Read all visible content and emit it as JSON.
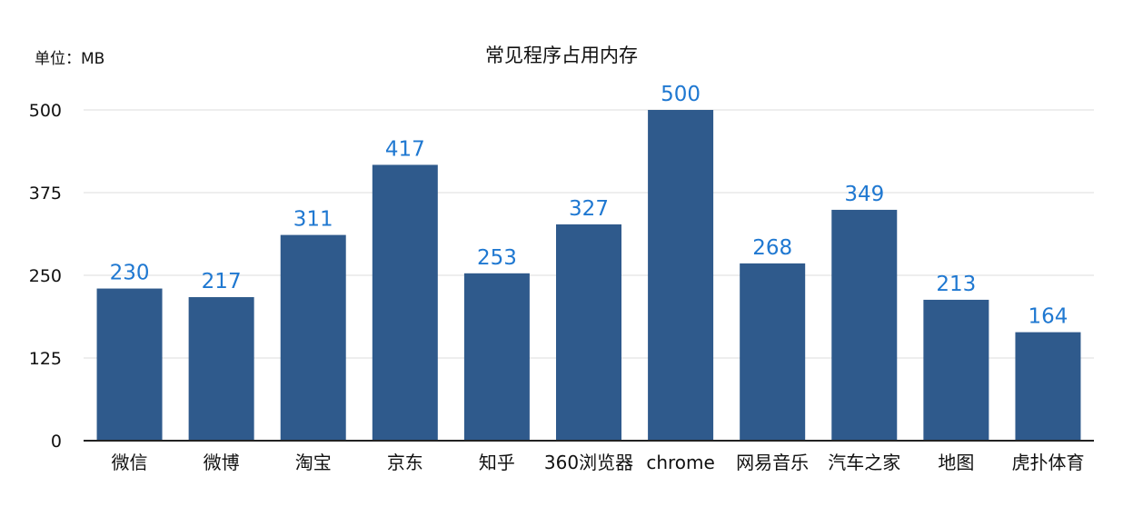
{
  "unit_label": "单位：MB",
  "chart_data": {
    "type": "bar",
    "title": "常见程序占用内存",
    "xlabel": "",
    "ylabel": "",
    "categories": [
      "微信",
      "微博",
      "淘宝",
      "京东",
      "知乎",
      "360浏览器",
      "chrome",
      "网易音乐",
      "汽车之家",
      "地图",
      "虎扑体育"
    ],
    "values": [
      230,
      217,
      311,
      417,
      253,
      327,
      500,
      268,
      349,
      213,
      164
    ],
    "ylim": [
      0,
      500
    ],
    "yticks": [
      0,
      125,
      250,
      375,
      500
    ],
    "grid": true,
    "bar_color": "#2f5a8c",
    "label_color": "#1f78d1"
  }
}
